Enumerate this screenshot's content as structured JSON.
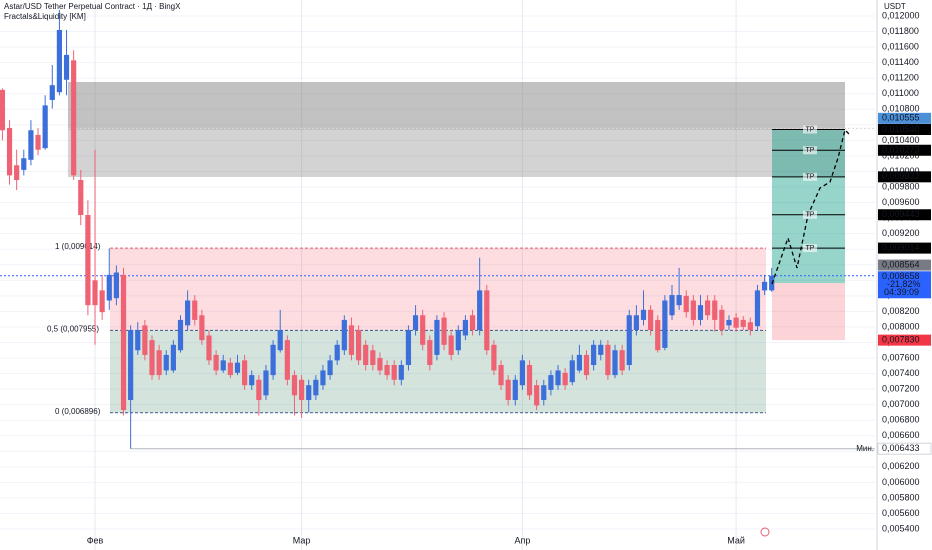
{
  "chart_data": {
    "type": "candlestick",
    "title": "Astar/USD Tether Perpetual Contract · 1Д · BingX",
    "subtitle": "Fractals&Liquidity [KM]",
    "currency": "USDT",
    "up_color": "#3c6fd9",
    "down_color": "#ef6274",
    "grid": true,
    "xlim": [
      -0.34,
      122.5
    ],
    "xticks": [
      {
        "value": 13,
        "label": "Фев"
      },
      {
        "value": 42,
        "label": "Мар"
      },
      {
        "value": 73,
        "label": "Апр"
      },
      {
        "value": 103,
        "label": "Май"
      }
    ],
    "ylim": [
      0.00513,
      0.012206
    ],
    "yticks": [
      {
        "value": 0.0054,
        "label": "0,005400"
      },
      {
        "value": 0.0056,
        "label": "0,005600"
      },
      {
        "value": 0.0058,
        "label": "0,005800"
      },
      {
        "value": 0.006,
        "label": "0,006000"
      },
      {
        "value": 0.0062,
        "label": "0,006200"
      },
      {
        "value": 0.0064,
        "label": "0,006400"
      },
      {
        "value": 0.0066,
        "label": "0,006600"
      },
      {
        "value": 0.0068,
        "label": "0,006800"
      },
      {
        "value": 0.007,
        "label": "0,007000"
      },
      {
        "value": 0.0072,
        "label": "0,007200"
      },
      {
        "value": 0.0074,
        "label": "0,007400"
      },
      {
        "value": 0.0076,
        "label": "0,007600"
      },
      {
        "value": 0.0078,
        "label": "0,007800"
      },
      {
        "value": 0.008,
        "label": "0,008000"
      },
      {
        "value": 0.0082,
        "label": "0,008200"
      },
      {
        "value": 0.0084,
        "label": "0,008400"
      },
      {
        "value": 0.0086,
        "label": "0,008600"
      },
      {
        "value": 0.0088,
        "label": "0,008800"
      },
      {
        "value": 0.009,
        "label": "0,009000"
      },
      {
        "value": 0.0092,
        "label": "0,009200"
      },
      {
        "value": 0.0094,
        "label": "0,009400"
      },
      {
        "value": 0.0096,
        "label": "0,009600"
      },
      {
        "value": 0.0098,
        "label": "0,009800"
      },
      {
        "value": 0.01,
        "label": "0,010000"
      },
      {
        "value": 0.0102,
        "label": "0,010200"
      },
      {
        "value": 0.0104,
        "label": "0,010400"
      },
      {
        "value": 0.0106,
        "label": "0,010600"
      },
      {
        "value": 0.0108,
        "label": "0,010800"
      },
      {
        "value": 0.011,
        "label": "0,011000"
      },
      {
        "value": 0.0112,
        "label": "0,011200"
      },
      {
        "value": 0.0114,
        "label": "0,011400"
      },
      {
        "value": 0.0116,
        "label": "0,011600"
      },
      {
        "value": 0.0118,
        "label": "0,011800"
      },
      {
        "value": 0.012,
        "label": "0,012000"
      }
    ],
    "open": [
      0.01105,
      0.01056,
      0.01008,
      0.01002,
      0.01015,
      0.01047,
      0.0103,
      0.01092,
      0.01102,
      0.01118,
      0.01143,
      0.00989,
      0.00944,
      0.0086,
      0.00847,
      0.00834,
      0.00837,
      0.00867,
      0.00706,
      0.0077,
      0.00802,
      0.00783,
      0.0077,
      0.00744,
      0.00744,
      0.0077,
      0.00802,
      0.00834,
      0.00815,
      0.00789,
      0.00764,
      0.00744,
      0.00754,
      0.00741,
      0.00757,
      0.00725,
      0.00732,
      0.00712,
      0.00738,
      0.0077,
      0.00783,
      0.00738,
      0.00732,
      0.00706,
      0.00712,
      0.00725,
      0.00738,
      0.00757,
      0.0077,
      0.00802,
      0.00796,
      0.00777,
      0.0077,
      0.0076,
      0.00751,
      0.00751,
      0.00732,
      0.00751,
      0.00796,
      0.00815,
      0.00783,
      0.00764,
      0.00812,
      0.00789,
      0.0077,
      0.00789,
      0.00815,
      0.00796,
      0.00847,
      0.00777,
      0.00751,
      0.00732,
      0.00706,
      0.00725,
      0.00751,
      0.00725,
      0.00706,
      0.00719,
      0.00725,
      0.00741,
      0.00729,
      0.00744,
      0.00764,
      0.00751,
      0.00764,
      0.00777,
      0.00738,
      0.0077,
      0.00751,
      0.00796,
      0.00809,
      0.00822,
      0.00809,
      0.00773,
      0.00815,
      0.00828,
      0.0084,
      0.00834,
      0.00809,
      0.00834,
      0.00834,
      0.00822,
      0.00802,
      0.00812,
      0.00809,
      0.00806,
      0.00801,
      0.00847,
      0.00847
    ],
    "high": [
      0.01107,
      0.01066,
      0.01028,
      0.01028,
      0.01066,
      0.01056,
      0.01098,
      0.01137,
      0.01208,
      0.01182,
      0.01156,
      0.01002,
      0.00963,
      0.01028,
      0.00867,
      0.00901,
      0.00879,
      0.00876,
      0.00802,
      0.00806,
      0.00809,
      0.00789,
      0.00777,
      0.0077,
      0.00783,
      0.00815,
      0.00847,
      0.00841,
      0.00822,
      0.00796,
      0.0077,
      0.00764,
      0.0076,
      0.00764,
      0.00764,
      0.00744,
      0.00738,
      0.00751,
      0.00783,
      0.00822,
      0.00789,
      0.00744,
      0.00738,
      0.00732,
      0.00738,
      0.00751,
      0.00764,
      0.00783,
      0.00815,
      0.00812,
      0.00802,
      0.00783,
      0.00777,
      0.00767,
      0.00757,
      0.00757,
      0.00757,
      0.00802,
      0.00828,
      0.00822,
      0.00789,
      0.00815,
      0.00819,
      0.00796,
      0.00802,
      0.00815,
      0.00822,
      0.00889,
      0.00854,
      0.00783,
      0.00757,
      0.00738,
      0.00738,
      0.00764,
      0.00757,
      0.00732,
      0.00732,
      0.00744,
      0.00751,
      0.00747,
      0.00764,
      0.00777,
      0.0077,
      0.00783,
      0.00783,
      0.00783,
      0.00777,
      0.00777,
      0.00822,
      0.00828,
      0.00847,
      0.00828,
      0.00815,
      0.00841,
      0.00854,
      0.00876,
      0.00847,
      0.00841,
      0.00841,
      0.00841,
      0.00841,
      0.00828,
      0.00815,
      0.00818,
      0.00814,
      0.00812,
      0.00854,
      0.00867,
      0.00876
    ],
    "low": [
      0.0104,
      0.00983,
      0.00976,
      0.00995,
      0.01008,
      0.01021,
      0.01028,
      0.01081,
      0.01098,
      0.01098,
      0.00989,
      0.00931,
      0.00815,
      0.00777,
      0.00809,
      0.00822,
      0.00828,
      0.00686,
      0.006433,
      0.00764,
      0.00757,
      0.00732,
      0.00732,
      0.00738,
      0.00741,
      0.00767,
      0.00796,
      0.00802,
      0.00777,
      0.00751,
      0.00738,
      0.00741,
      0.00734,
      0.00738,
      0.00719,
      0.00719,
      0.00686,
      0.00706,
      0.00732,
      0.00767,
      0.00725,
      0.00686,
      0.00683,
      0.0069,
      0.00706,
      0.00719,
      0.00732,
      0.00751,
      0.00764,
      0.00757,
      0.00751,
      0.00744,
      0.00744,
      0.00738,
      0.00732,
      0.00725,
      0.00725,
      0.00744,
      0.00789,
      0.0077,
      0.00744,
      0.00757,
      0.0077,
      0.00757,
      0.00764,
      0.00783,
      0.00789,
      0.00789,
      0.00764,
      0.00738,
      0.00719,
      0.00699,
      0.00699,
      0.00719,
      0.00706,
      0.00693,
      0.00699,
      0.00712,
      0.00719,
      0.00719,
      0.00725,
      0.00741,
      0.00732,
      0.00744,
      0.00757,
      0.00732,
      0.00734,
      0.00738,
      0.00744,
      0.00789,
      0.00802,
      0.00789,
      0.00767,
      0.0077,
      0.00809,
      0.00822,
      0.00812,
      0.00802,
      0.00802,
      0.00809,
      0.00794,
      0.00789,
      0.00796,
      0.00794,
      0.00796,
      0.00789,
      0.00796,
      0.00841,
      0.00845
    ],
    "close": [
      0.01053,
      0.00995,
      0.00989,
      0.01017,
      0.01053,
      0.01028,
      0.01085,
      0.01111,
      0.01182,
      0.0115,
      0.00995,
      0.00944,
      0.00828,
      0.00828,
      0.00819,
      0.00867,
      0.0087,
      0.00693,
      0.00796,
      0.00796,
      0.00764,
      0.00738,
      0.00738,
      0.00764,
      0.00777,
      0.00809,
      0.00834,
      0.00809,
      0.00783,
      0.00757,
      0.00744,
      0.00757,
      0.00738,
      0.00754,
      0.00725,
      0.00738,
      0.00706,
      0.00744,
      0.00777,
      0.00796,
      0.00732,
      0.00712,
      0.00706,
      0.00725,
      0.00732,
      0.00744,
      0.00757,
      0.00777,
      0.00809,
      0.00764,
      0.00757,
      0.00751,
      0.00751,
      0.00744,
      0.00738,
      0.00732,
      0.00751,
      0.00796,
      0.00815,
      0.00777,
      0.00751,
      0.00809,
      0.00777,
      0.00764,
      0.00796,
      0.00809,
      0.00796,
      0.00847,
      0.0077,
      0.00744,
      0.00725,
      0.00706,
      0.00732,
      0.00757,
      0.00712,
      0.00699,
      0.00725,
      0.00738,
      0.00744,
      0.00725,
      0.00757,
      0.00764,
      0.00738,
      0.00777,
      0.00777,
      0.00738,
      0.0077,
      0.00744,
      0.00815,
      0.00815,
      0.00822,
      0.00796,
      0.0077,
      0.00834,
      0.00841,
      0.00841,
      0.00819,
      0.00809,
      0.00828,
      0.00815,
      0.00809,
      0.00796,
      0.00809,
      0.00799,
      0.008,
      0.00796,
      0.00847,
      0.00858,
      0.008658
    ],
    "fib": [
      {
        "value": 0.009014,
        "label": "1 (0,009014)",
        "color": "#e0606e"
      },
      {
        "value": 0.007955,
        "label": "0,5 (0,007955)",
        "color": "#3b5a8c"
      },
      {
        "value": 0.006896,
        "label": "0 (0,006896)",
        "color": "#3b5a8c"
      }
    ],
    "levels": [
      {
        "value": 0.010555,
        "label": "0,010555",
        "color": "#4a8fd8"
      },
      {
        "value": 0.01054,
        "label": "0,010540",
        "color": "#000000",
        "tp": "TP"
      },
      {
        "value": 0.010273,
        "label": "0,010273",
        "color": "#000000",
        "tp": "TP"
      },
      {
        "value": 0.009931,
        "label": "0,009931",
        "color": "#000000",
        "tp": "TP"
      },
      {
        "value": 0.009443,
        "label": "0,009443",
        "color": "#000000",
        "tp": "TP"
      },
      {
        "value": 0.009014,
        "label": "0,009014",
        "color": "#000000",
        "tp": "TP"
      },
      {
        "value": 0.008564,
        "label": "0,008564",
        "color": "#787b86"
      },
      {
        "value": 0.00783,
        "label": "0,007830",
        "color": "#f23645"
      }
    ],
    "last_price": {
      "value": 0.008658,
      "label": "0,008658",
      "change": "-21,82%",
      "countdown": "04:39:09",
      "color": "#2962ff"
    },
    "min": {
      "value": 0.006433,
      "label": "0,006433",
      "name": "Мин."
    }
  }
}
